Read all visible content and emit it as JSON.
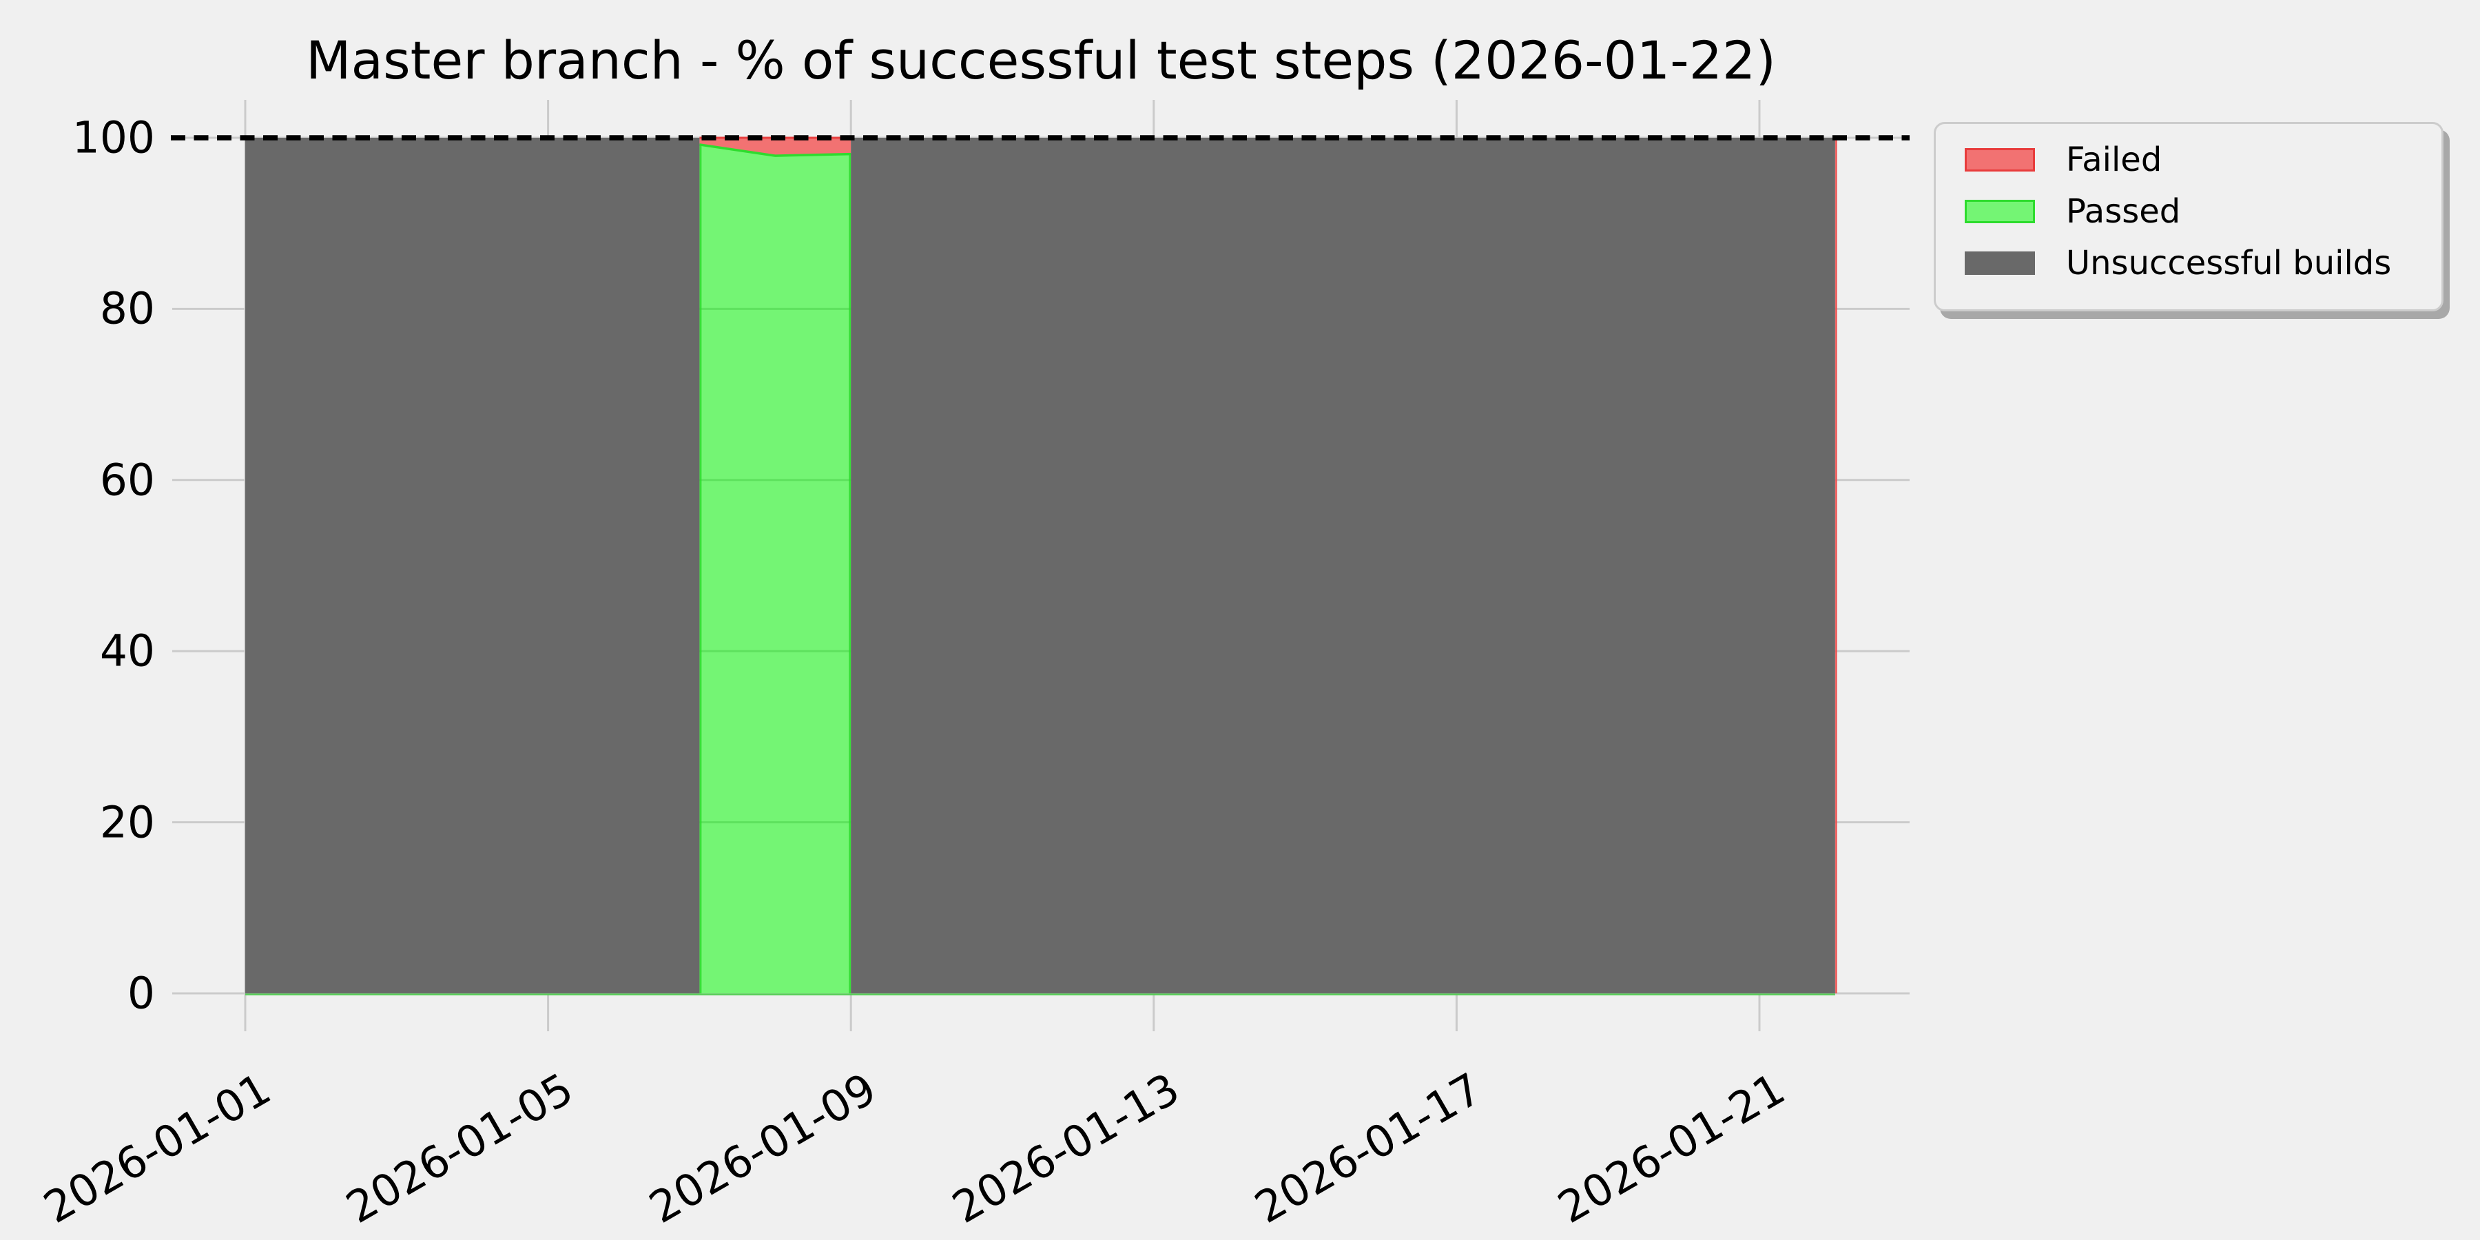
{
  "title": "Master branch - % of successful test steps (2026-01-22)",
  "legend": {
    "position": "upper-right-outside",
    "items": [
      {
        "label": "Failed",
        "fill": "#f27272",
        "edge": "#e83c3c"
      },
      {
        "label": "Passed",
        "fill": "#74f574",
        "edge": "#2edc2e"
      },
      {
        "label": "Unsuccessful builds",
        "fill": "#696969",
        "edge": "#696969"
      }
    ]
  },
  "chart_data": {
    "type": "area",
    "stacked": true,
    "title": "Master branch - % of successful test steps (2026-01-22)",
    "x_start": "2026-01-01",
    "x_end": "2026-01-22",
    "x_tick_labels": [
      "2026-01-01",
      "2026-01-05",
      "2026-01-09",
      "2026-01-13",
      "2026-01-17",
      "2026-01-21"
    ],
    "y_ticks": [
      0,
      20,
      40,
      60,
      80,
      100
    ],
    "ylim_view": [
      -4.5,
      104.5
    ],
    "grid": true,
    "grid_color": "#cbcbcb",
    "background_color": "#f0f0f0",
    "reference_line": {
      "value": 100,
      "style": "dashed",
      "color": "#000000"
    },
    "series": [
      {
        "name": "Failed",
        "fill": "#f27272",
        "edge": "#e84040",
        "points": [
          [
            "2026-01-07",
            0.8
          ],
          [
            "2026-01-08",
            2.1
          ],
          [
            "2026-01-09",
            1.9
          ]
        ]
      },
      {
        "name": "Passed",
        "fill": "#74f574",
        "edge": "#2edc2e",
        "points": [
          [
            "2026-01-07",
            99.2
          ],
          [
            "2026-01-08",
            97.9
          ],
          [
            "2026-01-09",
            98.1
          ]
        ]
      },
      {
        "name": "Unsuccessful builds",
        "fill": "#696969",
        "edge": "#696969",
        "segments": [
          [
            "2026-01-01",
            "2026-01-07",
            100
          ],
          [
            "2026-01-09",
            "2026-01-22",
            100
          ]
        ]
      }
    ],
    "legend_entries": [
      "Failed",
      "Passed",
      "Unsuccessful builds"
    ]
  }
}
